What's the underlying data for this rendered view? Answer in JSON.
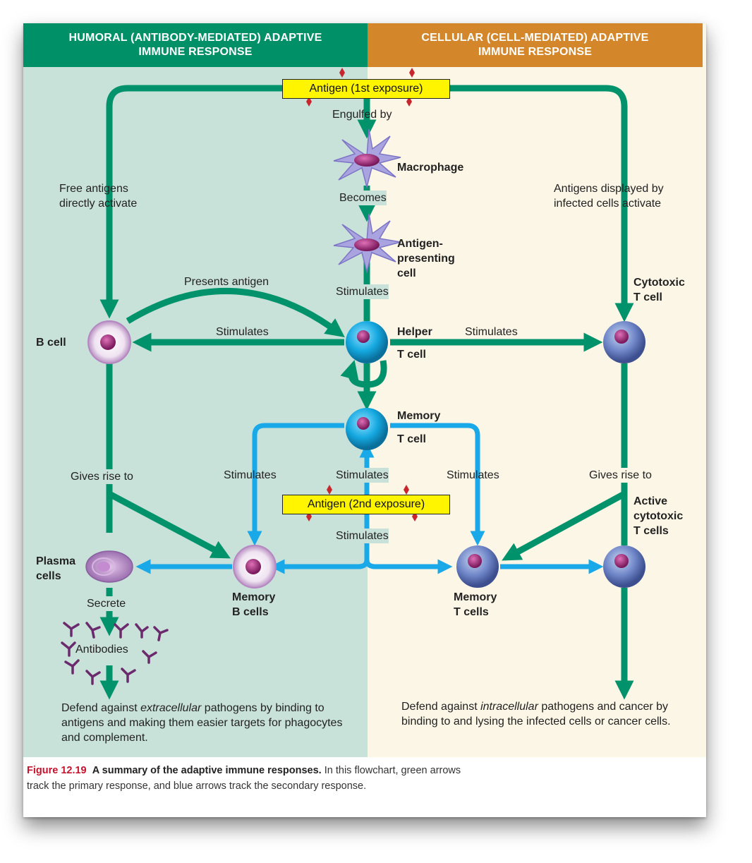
{
  "headers": {
    "humoral": "HUMORAL (ANTIBODY-MEDIATED) ADAPTIVE\nIMMUNE RESPONSE",
    "cellular": "CELLULAR (CELL-MEDIATED) ADAPTIVE\nIMMUNE RESPONSE"
  },
  "antigen_first": "Antigen (1st exposure)",
  "antigen_second": "Antigen (2nd exposure)",
  "labels": {
    "engulfed_by": "Engulfed by",
    "macrophage": "Macrophage",
    "becomes": "Becomes",
    "apc": "Antigen-\npresenting\ncell",
    "stimulates_apc": "Stimulates",
    "free_antigens": "Free antigens\ndirectly activate",
    "antigens_displayed": "Antigens displayed by\ninfected cells activate",
    "presents_antigen": "Presents antigen",
    "stimulates_b": "Stimulates",
    "stimulates_t": "Stimulates",
    "b_cell": "B cell",
    "helper_t_1": "Helper",
    "helper_t_2": "T cell",
    "cytotoxic_t": "Cytotoxic\nT cell",
    "memory_t_1": "Memory",
    "memory_t_2": "T cell",
    "gives_rise_left": "Gives rise to",
    "gives_rise_right": "Gives rise to",
    "stimulates_mb": "Stimulates",
    "stimulates_mt_up": "Stimulates",
    "stimulates_mtc": "Stimulates",
    "stimulates_second": "Stimulates",
    "active_cytotoxic": "Active\ncytotoxic\nT cells",
    "plasma_cells": "Plasma\ncells",
    "memory_b_cells": "Memory\nB cells",
    "memory_t_cells": "Memory\nT cells",
    "secrete": "Secrete",
    "antibodies": "Antibodies"
  },
  "outcomes": {
    "humoral_pre": "Defend against ",
    "humoral_em": "extracellular",
    "humoral_post": " pathogens by binding to antigens and making them easier targets for phagocytes and complement.",
    "cellular_pre": "Defend against ",
    "cellular_em": "intracellular",
    "cellular_post": " pathogens and cancer by binding to and lysing the infected cells or cancer cells."
  },
  "caption": {
    "figure": "Figure 12.19",
    "title": "A summary of the adaptive immune responses.",
    "text": "In this flowchart, green arrows track the primary response, and blue arrows track the secondary response."
  },
  "colors": {
    "humoral_header": "#009068",
    "cellular_header": "#d4862a",
    "humoral_bg": "#c9e2d9",
    "cellular_bg": "#fcf6e6",
    "primary_arrow": "#00936b",
    "secondary_arrow": "#1aa9e8",
    "antigen_box": "#fff500",
    "figure_label": "#c4122f"
  }
}
